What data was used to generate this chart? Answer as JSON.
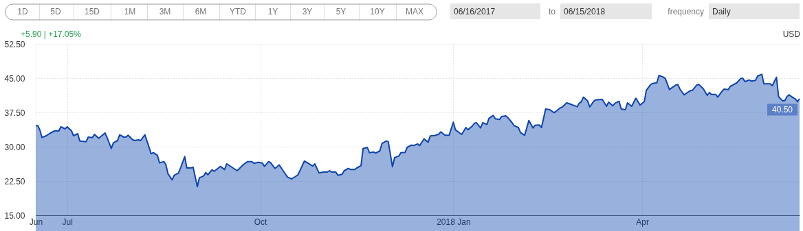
{
  "chart_data": {
    "type": "area",
    "annotations": [
      "1D",
      "5D",
      "15D",
      "1M",
      "3M",
      "6M",
      "YTD",
      "1Y",
      "3Y",
      "5Y",
      "10Y",
      "MAX",
      "06/16/2017",
      "to",
      "06/15/2018",
      "frequency",
      "Daily",
      "+5.90 | +17.05%",
      "USD",
      {
        "text": "40.50",
        "x": "2018-06-15",
        "y": 40.5
      }
    ],
    "x": [
      "2017-06-16",
      "2017-06-17",
      "2017-06-18",
      "2017-06-19",
      "2017-06-21",
      "2017-06-23",
      "2017-06-25",
      "2017-06-27",
      "2017-06-28",
      "2017-06-30",
      "2017-07-01",
      "2017-07-03",
      "2017-07-04",
      "2017-07-06",
      "2017-07-07",
      "2017-07-10",
      "2017-07-11",
      "2017-07-13",
      "2017-07-14",
      "2017-07-16",
      "2017-07-19",
      "2017-07-20",
      "2017-07-22",
      "2017-07-23",
      "2017-07-25",
      "2017-07-26",
      "2017-07-28",
      "2017-07-29",
      "2017-07-30",
      "2017-08-01",
      "2017-08-02",
      "2017-08-04",
      "2017-08-05",
      "2017-08-07",
      "2017-08-08",
      "2017-08-10",
      "2017-08-11",
      "2017-08-13",
      "2017-08-14",
      "2017-08-16",
      "2017-08-17",
      "2017-08-18",
      "2017-08-20",
      "2017-08-21",
      "2017-08-23",
      "2017-08-24",
      "2017-08-26",
      "2017-08-27",
      "2017-08-29",
      "2017-08-30",
      "2017-09-01",
      "2017-09-02",
      "2017-09-04",
      "2017-09-05",
      "2017-09-06",
      "2017-09-08",
      "2017-09-09",
      "2017-09-12",
      "2017-09-14",
      "2017-09-15",
      "2017-09-20",
      "2017-09-23",
      "2017-09-25",
      "2017-09-27",
      "2017-09-28",
      "2017-09-30",
      "2017-10-02",
      "2017-10-03",
      "2017-10-05",
      "2017-10-06",
      "2017-10-08",
      "2017-10-10",
      "2017-10-11",
      "2017-10-13",
      "2017-10-14",
      "2017-10-16",
      "2017-10-19",
      "2017-10-21",
      "2017-10-22",
      "2017-10-24",
      "2017-10-26",
      "2017-10-27",
      "2017-10-29",
      "2017-10-31",
      "2017-11-02",
      "2017-11-03",
      "2017-11-04",
      "2017-11-06",
      "2017-11-07",
      "2017-11-09",
      "2017-11-10",
      "2017-11-12",
      "2017-11-13",
      "2017-11-15",
      "2017-11-16",
      "2017-11-18",
      "2017-11-19",
      "2017-11-21",
      "2017-11-22",
      "2017-11-24",
      "2017-11-25",
      "2017-11-27",
      "2017-11-28",
      "2017-11-30",
      "2017-12-01",
      "2017-12-03",
      "2017-12-04",
      "2017-12-06",
      "2017-12-07",
      "2017-12-09",
      "2017-12-10",
      "2017-12-12",
      "2017-12-13",
      "2017-12-15",
      "2017-12-16",
      "2017-12-18",
      "2017-12-20",
      "2017-12-21",
      "2017-12-23",
      "2017-12-25",
      "2017-12-26",
      "2017-12-28",
      "2017-12-30",
      "2018-01-01",
      "2018-01-02",
      "2018-01-04",
      "2018-01-05",
      "2018-01-07",
      "2018-01-08",
      "2018-01-10",
      "2018-01-11",
      "2018-01-12",
      "2018-01-14",
      "2018-01-15",
      "2018-01-17",
      "2018-01-18",
      "2018-01-20",
      "2018-01-21",
      "2018-01-23",
      "2018-01-24",
      "2018-01-26",
      "2018-01-27",
      "2018-01-29",
      "2018-01-30",
      "2018-02-01",
      "2018-02-02",
      "2018-02-04",
      "2018-02-06",
      "2018-02-08",
      "2018-02-09",
      "2018-02-11",
      "2018-02-12",
      "2018-02-14",
      "2018-02-16",
      "2018-02-18",
      "2018-02-19",
      "2018-02-21",
      "2018-02-22",
      "2018-02-24",
      "2018-02-25",
      "2018-03-01",
      "2018-03-02",
      "2018-03-03",
      "2018-03-04",
      "2018-03-06",
      "2018-03-07",
      "2018-03-09",
      "2018-03-10",
      "2018-03-13",
      "2018-03-15",
      "2018-03-16",
      "2018-03-18",
      "2018-03-19",
      "2018-03-21",
      "2018-03-22",
      "2018-03-24",
      "2018-03-25",
      "2018-03-27",
      "2018-03-29",
      "2018-03-31",
      "2018-04-02",
      "2018-04-03",
      "2018-04-05",
      "2018-04-06",
      "2018-04-08",
      "2018-04-09",
      "2018-04-11",
      "2018-04-12",
      "2018-04-14",
      "2018-04-15",
      "2018-04-17",
      "2018-04-18",
      "2018-04-19",
      "2018-04-21",
      "2018-04-23",
      "2018-04-24",
      "2018-04-25",
      "2018-04-27",
      "2018-04-28",
      "2018-04-30",
      "2018-05-02",
      "2018-05-03",
      "2018-05-04",
      "2018-05-06",
      "2018-05-07",
      "2018-05-09",
      "2018-05-10",
      "2018-05-12",
      "2018-05-13",
      "2018-05-15",
      "2018-05-16",
      "2018-05-18",
      "2018-05-19",
      "2018-05-20",
      "2018-05-22",
      "2018-05-23",
      "2018-05-25",
      "2018-05-26",
      "2018-05-28",
      "2018-05-29",
      "2018-06-01",
      "2018-06-02",
      "2018-06-04",
      "2018-06-05",
      "2018-06-07",
      "2018-06-08",
      "2018-06-09",
      "2018-06-10",
      "2018-06-12",
      "2018-06-13",
      "2018-06-14",
      "2018-06-15"
    ],
    "series": [
      {
        "color": "#0d44ad",
        "values": [
          34.6,
          34.6,
          33.6,
          32.0,
          32.4,
          33.0,
          33.45,
          33.45,
          34.35,
          33.9,
          34.35,
          33.5,
          32.4,
          32.85,
          31.25,
          31.1,
          32.1,
          32.0,
          32.7,
          31.85,
          33.0,
          32.0,
          29.6,
          30.85,
          31.35,
          32.6,
          32.1,
          32.1,
          32.5,
          31.6,
          31.35,
          31.5,
          31.35,
          32.6,
          31.25,
          28.45,
          28.7,
          28.1,
          26.45,
          26.75,
          26.1,
          24.1,
          22.75,
          23.75,
          24.2,
          25.35,
          27.85,
          25.35,
          25.35,
          25.5,
          21.25,
          23.2,
          23.6,
          24.35,
          23.85,
          24.95,
          24.6,
          25.7,
          25.0,
          26.25,
          24.75,
          26.1,
          26.75,
          26.75,
          26.35,
          26.6,
          26.45,
          25.7,
          26.75,
          26.45,
          25.25,
          26.0,
          25.35,
          24.0,
          23.35,
          22.95,
          23.85,
          25.85,
          26.85,
          26.35,
          25.75,
          26.25,
          24.25,
          24.45,
          24.45,
          24.75,
          24.45,
          24.45,
          23.75,
          23.95,
          24.75,
          25.25,
          25.0,
          25.0,
          25.35,
          25.85,
          29.6,
          29.85,
          28.7,
          28.85,
          28.6,
          29.1,
          30.7,
          31.25,
          31.1,
          25.6,
          27.6,
          27.95,
          28.7,
          28.75,
          29.85,
          30.35,
          30.25,
          30.6,
          30.25,
          31.7,
          31.0,
          32.35,
          32.45,
          32.7,
          33.25,
          32.5,
          32.5,
          35.35,
          33.7,
          33.0,
          32.7,
          34.2,
          33.7,
          34.5,
          35.1,
          35.25,
          34.1,
          35.25,
          34.85,
          36.2,
          36.85,
          36.1,
          35.95,
          36.6,
          36.75,
          36.35,
          35.25,
          34.6,
          34.2,
          33.1,
          32.5,
          35.75,
          34.1,
          34.7,
          34.75,
          34.2,
          38.25,
          38.1,
          37.45,
          37.75,
          38.5,
          38.7,
          39.6,
          39.45,
          38.75,
          39.5,
          39.85,
          40.85,
          40.0,
          38.7,
          40.0,
          40.25,
          40.35,
          38.85,
          39.75,
          38.95,
          39.5,
          39.95,
          38.25,
          38.1,
          39.6,
          38.85,
          40.6,
          39.1,
          39.85,
          42.35,
          43.6,
          43.85,
          44.0,
          45.6,
          45.25,
          44.95,
          42.5,
          42.85,
          43.5,
          43.6,
          42.6,
          41.35,
          42.0,
          42.25,
          42.35,
          43.5,
          43.6,
          42.75,
          41.25,
          41.85,
          41.45,
          41.45,
          40.85,
          42.1,
          42.6,
          42.5,
          43.2,
          43.7,
          43.95,
          44.95,
          44.95,
          44.25,
          44.6,
          44.35,
          44.5,
          45.45,
          45.85,
          43.75,
          43.75,
          43.35,
          45.2,
          40.95,
          40.0,
          40.1,
          40.95,
          41.35,
          40.7,
          40.45,
          39.85,
          40.5
        ]
      }
    ],
    "xlim": [
      "2017-06-16",
      "2018-06-15"
    ],
    "xticks": [
      {
        "value": "2017-06-16",
        "label": "Jun"
      },
      {
        "value": "2017-07-01",
        "label": "Jul"
      },
      {
        "value": "2017-10-01",
        "label": "Oct"
      },
      {
        "value": "2018-01-01",
        "label": "2018 Jan"
      },
      {
        "value": "2018-04-01",
        "label": "Apr"
      }
    ],
    "ylim": [
      15,
      52.5
    ],
    "yticks": [
      {
        "value": 15,
        "label": "15.00"
      },
      {
        "value": 22.5,
        "label": "22.50"
      },
      {
        "value": 30,
        "label": "30.00"
      },
      {
        "value": 37.5,
        "label": "37.50"
      },
      {
        "value": 45,
        "label": "45.00"
      },
      {
        "value": 52.5,
        "label": "52.50"
      }
    ],
    "grid": true,
    "marker": "none",
    "line_style": "solid"
  }
}
